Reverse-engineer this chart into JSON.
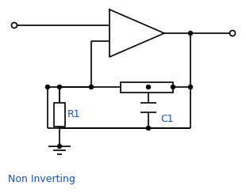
{
  "bg_color": "#ffffff",
  "line_color": "#000000",
  "label_color": "#1a52a0",
  "title": "Non Inverting",
  "R1_label": "R1",
  "C1_label": "C1",
  "fig_width": 3.1,
  "fig_height": 2.44,
  "dpi": 100
}
